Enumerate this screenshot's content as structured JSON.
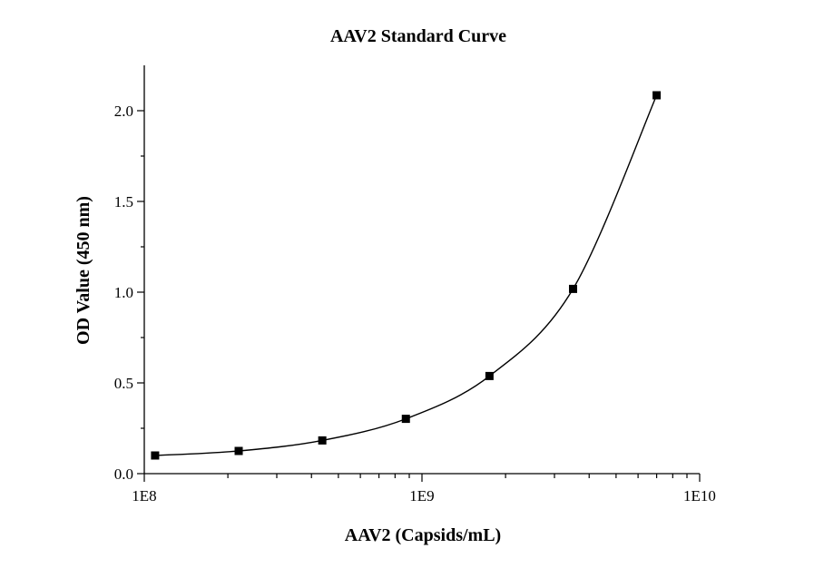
{
  "chart_data": {
    "type": "scatter",
    "title": "AAV2 Standard Curve",
    "xlabel": "AAV2 (Capsids/mL)",
    "ylabel": "OD Value (450 nm)",
    "x_scale": "log",
    "xlim": [
      100000000,
      10000000000
    ],
    "ylim": [
      0,
      2.25
    ],
    "x_ticks": [
      100000000,
      1000000000,
      10000000000
    ],
    "x_tick_labels": [
      "1E8",
      "1E9",
      "1E10"
    ],
    "y_ticks": [
      0,
      0.5,
      1.0,
      1.5,
      2.0
    ],
    "y_tick_labels": [
      "0.0",
      "0.5",
      "1.0",
      "1.5",
      "2.0"
    ],
    "series": [
      {
        "x": [
          109375000,
          218750000,
          437500000,
          875000000,
          1750000000,
          3500000000,
          7000000000
        ],
        "y": [
          0.1,
          0.125,
          0.183,
          0.302,
          0.538,
          1.018,
          2.085
        ],
        "marker": "square",
        "fit_curve": true,
        "color": "#000000"
      }
    ],
    "grid": false,
    "legend": "none"
  }
}
